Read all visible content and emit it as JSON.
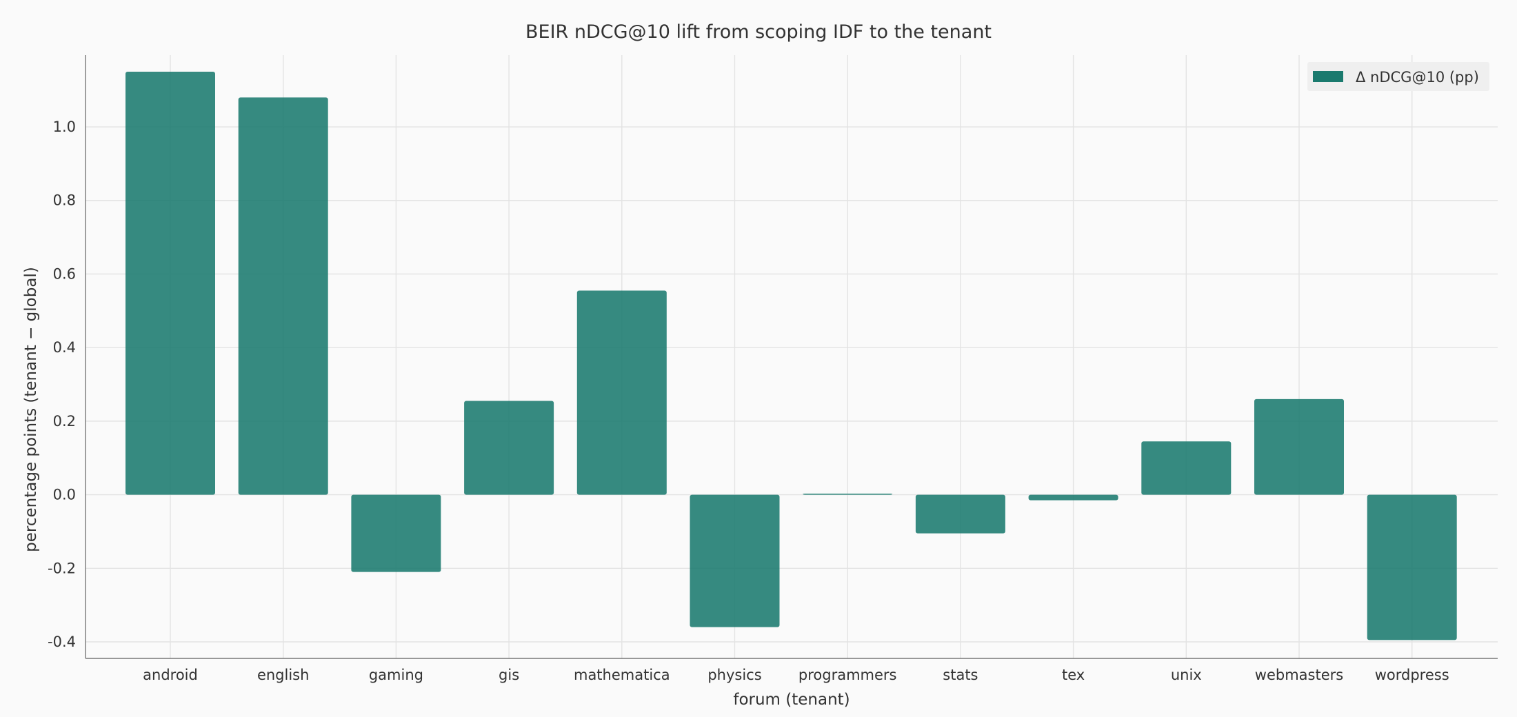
{
  "chart_data": {
    "type": "bar",
    "title": "BEIR nDCG@10 lift from scoping IDF to the tenant",
    "xlabel": "forum (tenant)",
    "ylabel": "percentage points (tenant − global)",
    "categories": [
      "android",
      "english",
      "gaming",
      "gis",
      "mathematica",
      "physics",
      "programmers",
      "stats",
      "tex",
      "unix",
      "webmasters",
      "wordpress"
    ],
    "series": [
      {
        "name": "Δ nDCG@10 (pp)",
        "values": [
          1.15,
          1.08,
          -0.21,
          0.255,
          0.555,
          -0.36,
          0.003,
          -0.105,
          -0.015,
          0.145,
          0.26,
          -0.395
        ],
        "color": "#1a7a6e"
      }
    ],
    "ylim": [
      -0.445,
      1.195
    ],
    "yticks": [
      -0.4,
      -0.2,
      0.0,
      0.2,
      0.4,
      0.6,
      0.8,
      1.0
    ],
    "ytick_labels": [
      "-0.4",
      "-0.2",
      "0.0",
      "0.2",
      "0.4",
      "0.6",
      "0.8",
      "1.0"
    ],
    "grid": true,
    "legend_position": "top-right"
  }
}
